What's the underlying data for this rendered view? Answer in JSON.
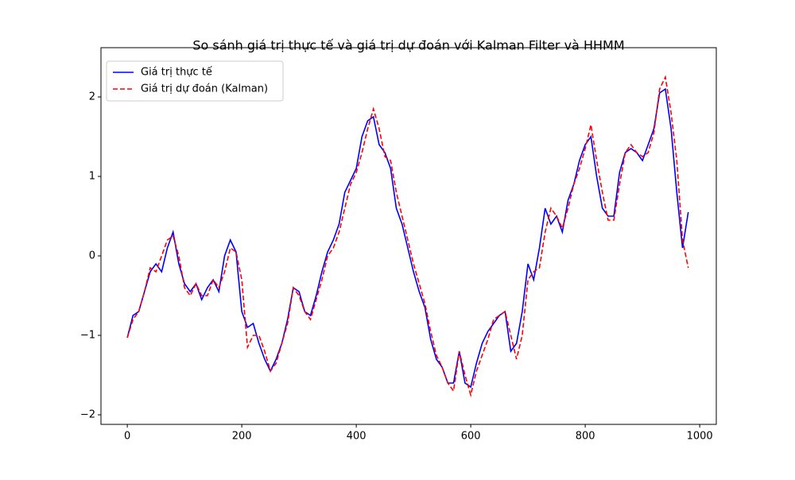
{
  "chart_data": {
    "type": "line",
    "title": "So sánh giá trị thực tế và giá trị dự đoán với Kalman Filter và HHMM",
    "x": [
      0,
      10,
      20,
      30,
      40,
      50,
      60,
      70,
      80,
      90,
      100,
      110,
      120,
      130,
      140,
      150,
      160,
      170,
      180,
      190,
      200,
      210,
      220,
      230,
      240,
      250,
      260,
      270,
      280,
      290,
      300,
      310,
      320,
      330,
      340,
      350,
      360,
      370,
      380,
      390,
      400,
      410,
      420,
      430,
      440,
      450,
      460,
      470,
      480,
      490,
      500,
      510,
      520,
      530,
      540,
      550,
      560,
      570,
      580,
      590,
      600,
      610,
      620,
      630,
      640,
      650,
      660,
      670,
      680,
      690,
      700,
      710,
      720,
      730,
      740,
      750,
      760,
      770,
      780,
      790,
      800,
      810,
      820,
      830,
      840,
      850,
      860,
      870,
      880,
      890,
      900,
      910,
      920,
      930,
      940,
      950,
      960,
      970,
      980
    ],
    "series": [
      {
        "name": "Giá trị thực tế",
        "color": "#0000ff",
        "dash": "solid",
        "values": [
          -1.03,
          -0.75,
          -0.7,
          -0.45,
          -0.2,
          -0.1,
          -0.2,
          0.1,
          0.3,
          -0.1,
          -0.35,
          -0.45,
          -0.35,
          -0.55,
          -0.4,
          -0.3,
          -0.45,
          0.0,
          0.2,
          0.05,
          -0.7,
          -0.9,
          -0.85,
          -1.1,
          -1.3,
          -1.45,
          -1.3,
          -1.1,
          -0.8,
          -0.4,
          -0.45,
          -0.7,
          -0.75,
          -0.5,
          -0.2,
          0.05,
          0.2,
          0.4,
          0.8,
          0.95,
          1.1,
          1.5,
          1.7,
          1.75,
          1.4,
          1.3,
          1.1,
          0.6,
          0.4,
          0.1,
          -0.2,
          -0.45,
          -0.65,
          -1.05,
          -1.3,
          -1.4,
          -1.6,
          -1.6,
          -1.2,
          -1.6,
          -1.65,
          -1.35,
          -1.1,
          -0.95,
          -0.85,
          -0.75,
          -0.7,
          -1.2,
          -1.1,
          -0.7,
          -0.1,
          -0.3,
          0.1,
          0.6,
          0.4,
          0.5,
          0.3,
          0.7,
          0.9,
          1.2,
          1.4,
          1.5,
          1.0,
          0.6,
          0.5,
          0.5,
          1.05,
          1.3,
          1.35,
          1.3,
          1.2,
          1.4,
          1.6,
          2.05,
          2.1,
          1.6,
          0.8,
          0.1,
          0.55
        ]
      },
      {
        "name": "Giá trị dự đoán (Kalman)",
        "color": "#ff0000",
        "dash": "dashed",
        "values": [
          -1.03,
          -0.8,
          -0.7,
          -0.45,
          -0.15,
          -0.2,
          0.0,
          0.2,
          0.25,
          0.0,
          -0.4,
          -0.5,
          -0.35,
          -0.5,
          -0.5,
          -0.3,
          -0.4,
          -0.2,
          0.1,
          0.05,
          -0.3,
          -1.15,
          -1.0,
          -1.0,
          -1.2,
          -1.45,
          -1.35,
          -1.1,
          -0.85,
          -0.4,
          -0.5,
          -0.7,
          -0.8,
          -0.55,
          -0.3,
          0.0,
          0.1,
          0.3,
          0.6,
          0.9,
          1.05,
          1.3,
          1.6,
          1.85,
          1.6,
          1.25,
          1.2,
          0.8,
          0.5,
          0.2,
          -0.1,
          -0.35,
          -0.6,
          -0.95,
          -1.25,
          -1.4,
          -1.6,
          -1.7,
          -1.2,
          -1.5,
          -1.75,
          -1.45,
          -1.25,
          -1.05,
          -0.8,
          -0.75,
          -0.7,
          -1.0,
          -1.3,
          -1.0,
          -0.3,
          -0.2,
          -0.15,
          0.3,
          0.6,
          0.5,
          0.35,
          0.6,
          0.9,
          1.1,
          1.35,
          1.65,
          1.2,
          0.8,
          0.45,
          0.45,
          0.9,
          1.3,
          1.4,
          1.3,
          1.25,
          1.3,
          1.55,
          2.1,
          2.25,
          1.8,
          1.2,
          0.2,
          -0.15
        ]
      }
    ],
    "xlim": [
      -46,
      1029
    ],
    "ylim": [
      -2.12,
      2.62
    ],
    "xticks": [
      0,
      200,
      400,
      600,
      800,
      1000
    ],
    "yticks": [
      {
        "value": -2,
        "label": "−2"
      },
      {
        "value": -1,
        "label": "−1"
      },
      0,
      1,
      2
    ],
    "legend": "upper left"
  }
}
